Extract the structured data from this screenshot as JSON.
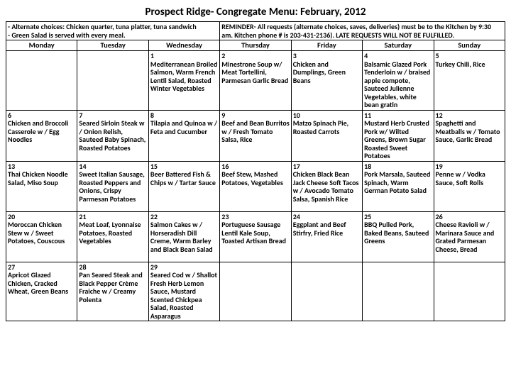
{
  "title": "Prospect Ridge- Congregate Menu: February, 2012",
  "notes_left": "-  Alternate choices: Chicken quarter, tuna platter, tuna sandwich\n-  Green Salad is served with every meal.",
  "notes_right": "REMINDER- All requests (alternate choices, saves, deliveries) must be to the Kitchen by 9:30 am.  Kitchen phone # is 203-431-2136).  LATE REQUESTS WILL NOT BE FULFILLED.",
  "days": [
    "Monday",
    "Tuesday",
    "Wednesday",
    "Thursday",
    "Friday",
    "Saturday",
    "Sunday"
  ],
  "weeks": [
    [
      {
        "num": "",
        "meal": ""
      },
      {
        "num": "",
        "meal": ""
      },
      {
        "num": "1",
        "meal": "Mediterranean Broiled Salmon, Warm French Lentil Salad, Roasted Winter Vegetables"
      },
      {
        "num": "2",
        "meal": "Minestrone Soup w/ Meat Tortellini, Parmesan Garlic Bread"
      },
      {
        "num": "3",
        "meal": "Chicken and Dumplings, Green Beans"
      },
      {
        "num": "4",
        "meal": "Balsamic Glazed Pork Tenderloin w / braised apple compote, Sauteed Julienne Vegetables, white bean gratin"
      },
      {
        "num": "5",
        "meal": "  Turkey Chili, Rice"
      }
    ],
    [
      {
        "num": "6",
        "meal": "Chicken and Broccoli Casserole w / Egg Noodles"
      },
      {
        "num": "7",
        "meal": "Seared Sirloin Steak w / Onion Relish, Sauteed Baby Spinach, Roasted Potatoes"
      },
      {
        "num": "8",
        "meal": "Tilapia and Quinoa w / Feta and Cucumber"
      },
      {
        "num": "9",
        "meal": "Beef and Bean Burritos w / Fresh Tomato Salsa, Rice"
      },
      {
        "num": "10",
        "meal": "Matzo Spinach Pie, Roasted Carrots"
      },
      {
        "num": "11",
        "meal": "Mustard Herb Crusted Pork w/ Wilted Greens, Brown Sugar Roasted Sweet Potatoes"
      },
      {
        "num": "12",
        "meal": " Spaghetti and Meatballs w / Tomato Sauce, Garlic Bread"
      }
    ],
    [
      {
        "num": "13",
        "meal": "Thai Chicken Noodle Salad, Miso Soup"
      },
      {
        "num": "14",
        "meal": "Sweet Italian Sausage, Roasted Peppers and Onions, Crispy Parmesan  Potatoes"
      },
      {
        "num": "15",
        "meal": "Beer Battered Fish & Chips w / Tartar Sauce"
      },
      {
        "num": "16",
        "meal": "Beef Stew, Mashed Potatoes, Vegetables"
      },
      {
        "num": "17",
        "meal": "Chicken Black Bean Jack Cheese Soft Tacos w / Avocado Tomato Salsa, Spanish Rice"
      },
      {
        "num": "18",
        "meal": "Pork Marsala, Sauteed Spinach, Warm German Potato Salad"
      },
      {
        "num": "19",
        "meal": "Penne w / Vodka Sauce, Soft Rolls"
      }
    ],
    [
      {
        "num": "20",
        "meal": "Moroccan Chicken Stew w / Sweet Potatoes, Couscous"
      },
      {
        "num": "21",
        "meal": "Meat Loaf, Lyonnaise Potatoes, Roasted Vegetables"
      },
      {
        "num": "22",
        "meal": "Salmon Cakes w / Horseradish Dill Creme, Warm Barley and Black Bean Salad"
      },
      {
        "num": "23",
        "meal": "Portuguese Sausage Lentil Kale Soup, Toasted Artisan Bread"
      },
      {
        "num": "24",
        "meal": "Eggplant and Beef Stirfry, Fried Rice"
      },
      {
        "num": "25",
        "meal": "BBQ Pulled Pork, Baked Beans, Sauteed Greens"
      },
      {
        "num": "26",
        "meal": " Cheese Ravioli w / Marinara Sauce and Grated Parmesan Cheese, Bread"
      }
    ],
    [
      {
        "num": "27",
        "meal": "Apricot Glazed Chicken, Cracked Wheat, Green Beans"
      },
      {
        "num": "28",
        "meal": "Pan Seared Steak and Black Pepper Crème Fraiche w / Creamy Polenta"
      },
      {
        "num": "29",
        "meal": "Seared Cod w / Shallot Fresh Herb Lemon Sauce, Mustard Scented Chickpea Salad, Roasted Asparagus"
      },
      {
        "num": "",
        "meal": ""
      },
      {
        "num": "",
        "meal": ""
      },
      {
        "num": "",
        "meal": ""
      },
      {
        "num": "",
        "meal": ""
      }
    ]
  ]
}
